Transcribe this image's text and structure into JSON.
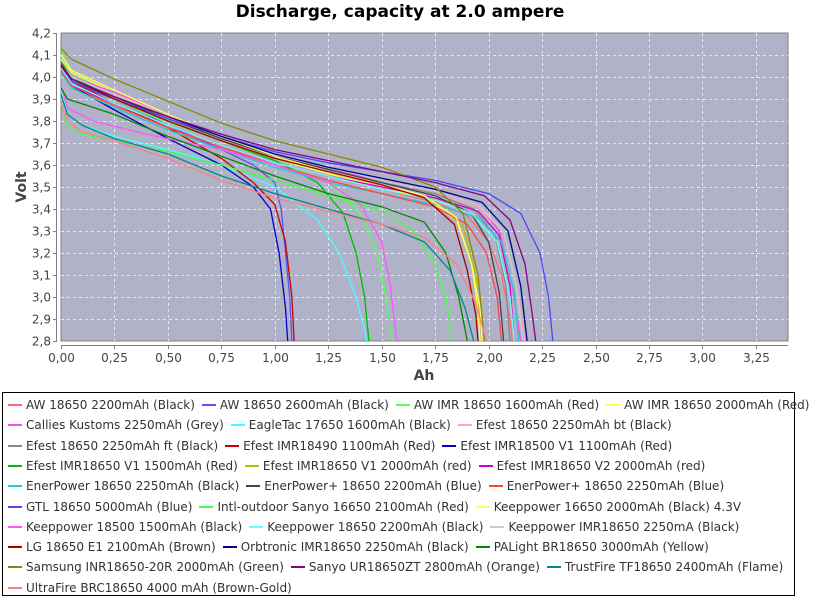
{
  "chart_data": {
    "type": "line",
    "title": "Discharge, capacity at 2.0 ampere",
    "xlabel": "Ah",
    "ylabel": "Volt",
    "xlim": [
      0,
      3.4
    ],
    "ylim": [
      2.8,
      4.2
    ],
    "grid": true,
    "legend": "bottom",
    "xticks": [
      "0,00",
      "0,25",
      "0,50",
      "0,75",
      "1,00",
      "1,25",
      "1,50",
      "1,75",
      "2,00",
      "2,25",
      "2,50",
      "2,75",
      "3,00",
      "3,25"
    ],
    "xtick_values": [
      0,
      0.25,
      0.5,
      0.75,
      1.0,
      1.25,
      1.5,
      1.75,
      2.0,
      2.25,
      2.5,
      2.75,
      3.0,
      3.25
    ],
    "yticks": [
      "2,8",
      "2,9",
      "3,0",
      "3,1",
      "3,2",
      "3,3",
      "3,4",
      "3,5",
      "3,6",
      "3,7",
      "3,8",
      "3,9",
      "4,0",
      "4,1",
      "4,2"
    ],
    "ytick_values": [
      2.8,
      2.9,
      3.0,
      3.1,
      3.2,
      3.3,
      3.4,
      3.5,
      3.6,
      3.7,
      3.8,
      3.9,
      4.0,
      4.1,
      4.2
    ],
    "series": [
      {
        "name": "AW 18650 2200mAh (Black)",
        "color": "#ff6a6a",
        "x": [
          0,
          0.05,
          0.25,
          0.5,
          0.75,
          1.0,
          1.25,
          1.5,
          1.75,
          1.9,
          2.0,
          2.06,
          2.1,
          2.11
        ],
        "y": [
          4.05,
          3.96,
          3.86,
          3.76,
          3.68,
          3.61,
          3.55,
          3.49,
          3.43,
          3.37,
          3.25,
          3.1,
          2.9,
          2.8
        ]
      },
      {
        "name": "AW 18650 2600mAh (Black)",
        "color": "#5555ff",
        "x": [
          0,
          0.05,
          0.25,
          0.5,
          0.75,
          0.9,
          1.0,
          1.03,
          1.05,
          1.07,
          1.08
        ],
        "y": [
          4.03,
          3.97,
          3.9,
          3.78,
          3.67,
          3.6,
          3.52,
          3.4,
          3.2,
          3.0,
          2.8
        ]
      },
      {
        "name": "AW IMR 18650 1600mAh (Red)",
        "color": "#55ff55",
        "x": [
          0,
          0.03,
          0.15,
          0.4,
          0.75,
          1.0,
          1.25,
          1.4,
          1.48,
          1.52,
          1.55
        ],
        "y": [
          4.13,
          4.05,
          3.95,
          3.83,
          3.71,
          3.62,
          3.52,
          3.38,
          3.2,
          3.0,
          2.8
        ]
      },
      {
        "name": "AW IMR 18650 2000mAh (Red)",
        "color": "#ffff44",
        "x": [
          0,
          0.05,
          0.25,
          0.5,
          0.75,
          1.0,
          1.25,
          1.5,
          1.7,
          1.85,
          1.92,
          1.95,
          1.96
        ],
        "y": [
          4.08,
          4.02,
          3.93,
          3.82,
          3.72,
          3.63,
          3.56,
          3.5,
          3.45,
          3.35,
          3.15,
          2.95,
          2.8
        ]
      },
      {
        "name": "Callies Kustoms 2250mAh (Grey)",
        "color": "#ff44ff",
        "x": [
          0,
          0.05,
          0.25,
          0.5,
          0.75,
          1.0,
          1.25,
          1.5,
          1.75,
          1.95,
          2.05,
          2.11,
          2.15
        ],
        "y": [
          4.06,
          4.0,
          3.93,
          3.83,
          3.73,
          3.64,
          3.58,
          3.53,
          3.48,
          3.42,
          3.3,
          3.05,
          2.8
        ]
      },
      {
        "name": "EagleTac 17650 1600mAh (Black)",
        "color": "#44ffff",
        "x": [
          0,
          0.03,
          0.1,
          0.25,
          0.5,
          0.75,
          1.0,
          1.2,
          1.3,
          1.38,
          1.42,
          1.43
        ],
        "y": [
          3.95,
          3.83,
          3.78,
          3.73,
          3.67,
          3.6,
          3.5,
          3.35,
          3.2,
          3.0,
          2.85,
          2.8
        ]
      },
      {
        "name": "Efest 18650 2250mAh bt (Black)",
        "color": "#ffaaaa",
        "x": [
          0,
          0.05,
          0.25,
          0.5,
          0.75,
          1.0,
          1.25,
          1.5,
          1.75,
          1.95,
          2.07,
          2.13,
          2.17
        ],
        "y": [
          4.05,
          3.99,
          3.91,
          3.81,
          3.72,
          3.63,
          3.57,
          3.52,
          3.47,
          3.41,
          3.3,
          3.05,
          2.8
        ]
      },
      {
        "name": "Efest 18650 2250mAh ft (Black)",
        "color": "#888888",
        "x": [
          0,
          0.05,
          0.25,
          0.5,
          0.75,
          1.0,
          1.25,
          1.5,
          1.75,
          1.93,
          2.03,
          2.08,
          2.1
        ],
        "y": [
          4.06,
          4.0,
          3.92,
          3.82,
          3.73,
          3.64,
          3.58,
          3.52,
          3.47,
          3.4,
          3.28,
          3.05,
          2.8
        ]
      },
      {
        "name": "Efest IMR18490 1100mAh (Red)",
        "color": "#cc0000",
        "x": [
          0,
          0.05,
          0.25,
          0.5,
          0.75,
          0.9,
          1.0,
          1.05,
          1.08,
          1.09
        ],
        "y": [
          4.05,
          3.98,
          3.88,
          3.77,
          3.63,
          3.52,
          3.42,
          3.25,
          3.0,
          2.8
        ]
      },
      {
        "name": "Efest IMR18500 V1 1100mAh (Red)",
        "color": "#0000cc",
        "x": [
          0,
          0.05,
          0.25,
          0.5,
          0.75,
          0.9,
          0.98,
          1.02,
          1.05,
          1.06
        ],
        "y": [
          4.04,
          3.96,
          3.85,
          3.72,
          3.6,
          3.5,
          3.4,
          3.2,
          2.95,
          2.8
        ]
      },
      {
        "name": "Efest IMR18650 V1 1500mAh (Red)",
        "color": "#00bb00",
        "x": [
          0,
          0.05,
          0.25,
          0.5,
          0.75,
          1.0,
          1.2,
          1.32,
          1.38,
          1.42,
          1.44
        ],
        "y": [
          4.07,
          4.0,
          3.9,
          3.8,
          3.71,
          3.62,
          3.52,
          3.38,
          3.2,
          3.0,
          2.8
        ]
      },
      {
        "name": "Efest IMR18650 V1 2000mAh (red)",
        "color": "#bbbb00",
        "x": [
          0,
          0.05,
          0.25,
          0.5,
          0.75,
          1.0,
          1.25,
          1.5,
          1.75,
          1.88,
          1.94,
          1.97
        ],
        "y": [
          4.05,
          3.99,
          3.9,
          3.8,
          3.71,
          3.63,
          3.57,
          3.51,
          3.44,
          3.32,
          3.1,
          2.8
        ]
      },
      {
        "name": "Efest IMR18650 V2 2000mAh (red)",
        "color": "#cc00cc",
        "x": [
          0,
          0.05,
          0.25,
          0.5,
          0.75,
          1.0,
          1.25,
          1.5,
          1.75,
          1.95,
          2.05,
          2.1,
          2.12
        ],
        "y": [
          4.03,
          3.96,
          3.88,
          3.78,
          3.69,
          3.61,
          3.55,
          3.5,
          3.45,
          3.39,
          3.28,
          3.05,
          2.8
        ]
      },
      {
        "name": "EnerPower 18650 2250mAh (Black)",
        "color": "#22cccc",
        "x": [
          0,
          0.05,
          0.25,
          0.5,
          0.75,
          1.0,
          1.25,
          1.5,
          1.75,
          1.95,
          2.06,
          2.12,
          2.14
        ],
        "y": [
          4.02,
          3.95,
          3.86,
          3.76,
          3.67,
          3.59,
          3.52,
          3.47,
          3.42,
          3.36,
          3.25,
          3.02,
          2.8
        ]
      },
      {
        "name": "EnerPower+ 18650 2200mAh (Blue)",
        "color": "#444444",
        "x": [
          0,
          0.05,
          0.25,
          0.5,
          0.75,
          1.0,
          1.25,
          1.5,
          1.75,
          1.92,
          2.0,
          2.05,
          2.07
        ],
        "y": [
          4.05,
          3.99,
          3.91,
          3.81,
          3.72,
          3.64,
          3.58,
          3.52,
          3.46,
          3.38,
          3.25,
          3.02,
          2.8
        ]
      },
      {
        "name": "EnerPower+ 18650 2250mAh (Blue)",
        "color": "#ff4444",
        "x": [
          0,
          0.05,
          0.25,
          0.5,
          0.75,
          1.0,
          1.25,
          1.5,
          1.75,
          1.9,
          1.99,
          2.04,
          2.06
        ],
        "y": [
          4.03,
          3.96,
          3.87,
          3.77,
          3.68,
          3.6,
          3.53,
          3.47,
          3.41,
          3.33,
          3.2,
          3.0,
          2.8
        ]
      },
      {
        "name": "GTL 18650 5000mAh (Blue)",
        "color": "#4848ff",
        "x": [
          0,
          0.05,
          0.25,
          0.5,
          0.75,
          1.0,
          1.25,
          1.5,
          1.75,
          2.0,
          2.15,
          2.24,
          2.28,
          2.3
        ],
        "y": [
          4.04,
          3.98,
          3.9,
          3.81,
          3.73,
          3.66,
          3.61,
          3.57,
          3.53,
          3.47,
          3.38,
          3.2,
          3.0,
          2.8
        ]
      },
      {
        "name": "Intl-outdoor Sanyo 16650 2100mAh (Red)",
        "color": "#44ff44",
        "x": [
          0,
          0.03,
          0.1,
          0.25,
          0.5,
          0.75,
          1.0,
          1.25,
          1.5,
          1.65,
          1.75,
          1.8,
          1.83
        ],
        "y": [
          3.88,
          3.78,
          3.74,
          3.71,
          3.66,
          3.6,
          3.53,
          3.46,
          3.39,
          3.3,
          3.15,
          3.0,
          2.8
        ]
      },
      {
        "name": "Keeppower 16650 2000mAh (Black) 4.3V",
        "color": "#ffff66",
        "x": [
          0,
          0.05,
          0.25,
          0.5,
          0.75,
          1.0,
          1.25,
          1.5,
          1.7,
          1.85,
          1.92,
          1.96,
          1.97
        ],
        "y": [
          4.1,
          4.03,
          3.94,
          3.83,
          3.73,
          3.64,
          3.57,
          3.51,
          3.46,
          3.36,
          3.15,
          2.95,
          2.8
        ]
      },
      {
        "name": "Keeppower 18500 1500mAh (Black)",
        "color": "#ff55ff",
        "x": [
          0,
          0.03,
          0.15,
          0.4,
          0.75,
          1.0,
          1.25,
          1.4,
          1.5,
          1.54,
          1.57
        ],
        "y": [
          3.96,
          3.86,
          3.8,
          3.74,
          3.67,
          3.6,
          3.52,
          3.42,
          3.25,
          3.05,
          2.8
        ]
      },
      {
        "name": "Keeppower 18650 2200mAh (Black)",
        "color": "#66ffff",
        "x": [
          0,
          0.05,
          0.25,
          0.5,
          0.75,
          1.0,
          1.25,
          1.5,
          1.75,
          1.92,
          2.04,
          2.1,
          2.12
        ],
        "y": [
          4.04,
          3.97,
          3.88,
          3.78,
          3.69,
          3.61,
          3.55,
          3.49,
          3.44,
          3.38,
          3.25,
          3.0,
          2.8
        ]
      },
      {
        "name": "Keeppower IMR18650 2250mA (Black)",
        "color": "#cccccc",
        "x": [
          0,
          0.05,
          0.25,
          0.5,
          0.75,
          1.0,
          1.25,
          1.5,
          1.75,
          1.95,
          2.07,
          2.13,
          2.16
        ],
        "y": [
          4.06,
          4.0,
          3.92,
          3.82,
          3.73,
          3.65,
          3.59,
          3.53,
          3.48,
          3.42,
          3.3,
          3.05,
          2.8
        ]
      },
      {
        "name": "LG 18650 E1 2100mAh (Brown)",
        "color": "#aa0000",
        "x": [
          0,
          0.05,
          0.25,
          0.5,
          0.75,
          1.0,
          1.25,
          1.5,
          1.7,
          1.84,
          1.9,
          1.94,
          1.95
        ],
        "y": [
          4.06,
          3.99,
          3.9,
          3.8,
          3.71,
          3.63,
          3.57,
          3.51,
          3.45,
          3.33,
          3.12,
          2.92,
          2.8
        ]
      },
      {
        "name": "Orbtronic IMR18650 2250mAh (Black)",
        "color": "#000088",
        "x": [
          0,
          0.05,
          0.25,
          0.5,
          0.75,
          1.0,
          1.25,
          1.5,
          1.75,
          1.97,
          2.09,
          2.15,
          2.18
        ],
        "y": [
          4.05,
          3.99,
          3.91,
          3.82,
          3.73,
          3.65,
          3.59,
          3.54,
          3.49,
          3.43,
          3.3,
          3.05,
          2.8
        ]
      },
      {
        "name": "PALight BR18650 3000mAh (Yellow)",
        "color": "#008800",
        "x": [
          0,
          0.03,
          0.25,
          0.5,
          0.75,
          1.0,
          1.25,
          1.5,
          1.7,
          1.8,
          1.86,
          1.9
        ],
        "y": [
          3.95,
          3.9,
          3.83,
          3.73,
          3.64,
          3.55,
          3.47,
          3.41,
          3.34,
          3.2,
          3.0,
          2.8
        ]
      },
      {
        "name": "Samsung INR18650-20R 2000mAh (Green)",
        "color": "#888800",
        "x": [
          0,
          0.05,
          0.25,
          0.5,
          0.75,
          1.0,
          1.25,
          1.5,
          1.75,
          1.88,
          1.95,
          1.98
        ],
        "y": [
          4.13,
          4.08,
          3.99,
          3.89,
          3.79,
          3.71,
          3.65,
          3.59,
          3.5,
          3.38,
          3.1,
          2.8
        ]
      },
      {
        "name": "Sanyo UR18650ZT 2800mAh (Orange)",
        "color": "#880088",
        "x": [
          0,
          0.05,
          0.25,
          0.5,
          0.75,
          1.0,
          1.25,
          1.5,
          1.75,
          1.98,
          2.1,
          2.17,
          2.2,
          2.22
        ],
        "y": [
          4.05,
          3.99,
          3.91,
          3.82,
          3.74,
          3.67,
          3.62,
          3.57,
          3.52,
          3.46,
          3.35,
          3.15,
          2.95,
          2.8
        ]
      },
      {
        "name": "TrustFire TF18650 2400mAh (Flame)",
        "color": "#008888",
        "x": [
          0,
          0.03,
          0.1,
          0.25,
          0.5,
          0.75,
          1.0,
          1.25,
          1.5,
          1.7,
          1.82,
          1.89,
          1.93
        ],
        "y": [
          3.92,
          3.83,
          3.78,
          3.72,
          3.65,
          3.55,
          3.47,
          3.4,
          3.33,
          3.25,
          3.12,
          2.95,
          2.8
        ]
      },
      {
        "name": "UltraFire BRC18650 4000 mAh (Brown-Gold)",
        "color": "#ff8080",
        "x": [
          0,
          0.03,
          0.1,
          0.25,
          0.5,
          0.75,
          1.0,
          1.25,
          1.5,
          1.7,
          1.85,
          1.94,
          1.99
        ],
        "y": [
          3.88,
          3.8,
          3.75,
          3.71,
          3.63,
          3.53,
          3.45,
          3.39,
          3.33,
          3.27,
          3.15,
          2.97,
          2.8
        ]
      }
    ]
  }
}
